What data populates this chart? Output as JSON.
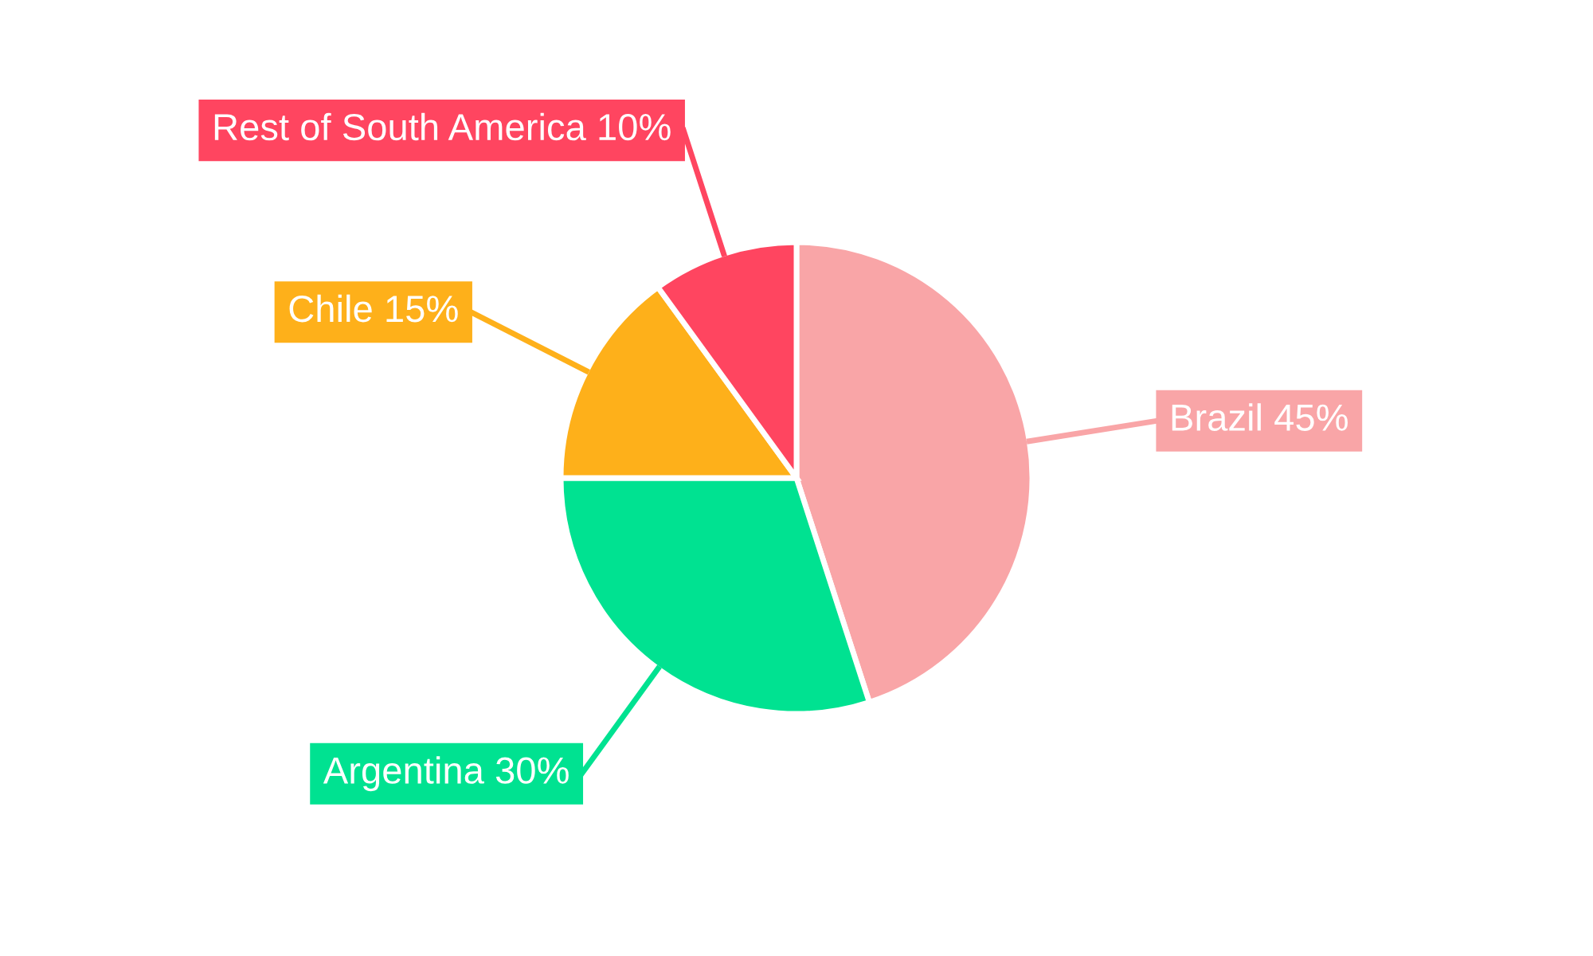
{
  "chart_data": {
    "type": "pie",
    "categories": [
      "Brazil",
      "Argentina",
      "Chile",
      "Rest of South America"
    ],
    "values": [
      45,
      30,
      15,
      10
    ],
    "value_labels": [
      "45%",
      "30%",
      "15%",
      "10%"
    ],
    "colors": [
      "#f9a5a7",
      "#00e291",
      "#feb01a",
      "#ff4560"
    ],
    "legend": false
  }
}
